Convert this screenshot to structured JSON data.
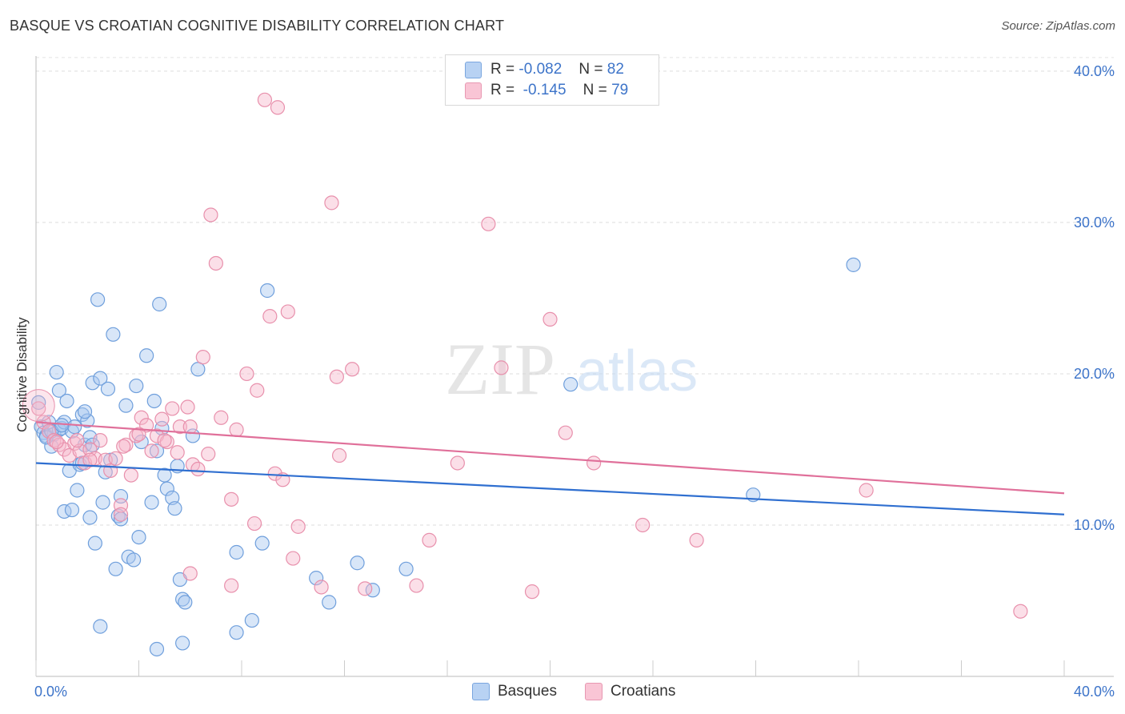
{
  "header": {
    "title": "BASQUE VS CROATIAN COGNITIVE DISABILITY CORRELATION CHART",
    "source": "Source: ZipAtlas.com"
  },
  "watermark": {
    "zip": "ZIP",
    "atlas": "atlas"
  },
  "legend": {
    "series": [
      {
        "r_label": "R =",
        "r_value": "-0.082",
        "n_label": "N =",
        "n_value": "82"
      },
      {
        "r_label": "R =",
        "r_value": "-0.145",
        "n_label": "N =",
        "n_value": "79"
      }
    ],
    "bottom": [
      "Basques",
      "Croatians"
    ]
  },
  "colors": {
    "basque_fill": "#a9c8f0",
    "basque_stroke": "#6f9fdc",
    "basque_line": "#2f6fd0",
    "croatian_fill": "#f7b8cc",
    "croatian_stroke": "#e890ac",
    "croatian_line": "#e0709a",
    "axis_text": "#3d74c9"
  },
  "chart_data": {
    "type": "scatter",
    "title": "BASQUE VS CROATIAN COGNITIVE DISABILITY CORRELATION CHART",
    "xlabel": "",
    "ylabel": "Cognitive Disability",
    "xlim": [
      0,
      40
    ],
    "ylim": [
      0,
      41
    ],
    "x_tick_labels": [
      "0.0%",
      "40.0%"
    ],
    "y_ticks": [
      10,
      20,
      30,
      40
    ],
    "y_tick_labels": [
      "10.0%",
      "20.0%",
      "30.0%",
      "40.0%"
    ],
    "grid": true,
    "series": [
      {
        "name": "Basques",
        "r": -0.082,
        "n": 82,
        "trend": {
          "x": [
            0,
            40
          ],
          "y": [
            14.1,
            10.7
          ]
        },
        "points": [
          [
            0.1,
            18.1
          ],
          [
            0.2,
            16.5
          ],
          [
            0.3,
            16.1
          ],
          [
            0.4,
            15.9
          ],
          [
            0.5,
            16.8
          ],
          [
            0.6,
            15.2
          ],
          [
            0.7,
            16.0
          ],
          [
            0.8,
            20.1
          ],
          [
            0.9,
            18.9
          ],
          [
            0.9,
            16.3
          ],
          [
            1.0,
            16.4
          ],
          [
            1.1,
            16.8
          ],
          [
            1.2,
            18.2
          ],
          [
            1.3,
            13.6
          ],
          [
            1.4,
            16.2
          ],
          [
            1.5,
            16.5
          ],
          [
            1.6,
            12.3
          ],
          [
            1.7,
            14.0
          ],
          [
            1.8,
            17.3
          ],
          [
            1.9,
            15.3
          ],
          [
            2.0,
            16.9
          ],
          [
            2.1,
            15.8
          ],
          [
            2.2,
            19.4
          ],
          [
            2.3,
            8.8
          ],
          [
            2.4,
            24.9
          ],
          [
            2.5,
            19.7
          ],
          [
            2.6,
            11.5
          ],
          [
            2.7,
            13.5
          ],
          [
            2.8,
            19.0
          ],
          [
            2.9,
            14.3
          ],
          [
            3.0,
            22.6
          ],
          [
            3.1,
            7.1
          ],
          [
            3.2,
            10.6
          ],
          [
            3.3,
            11.9
          ],
          [
            3.5,
            17.9
          ],
          [
            3.6,
            7.9
          ],
          [
            3.8,
            7.7
          ],
          [
            3.9,
            19.2
          ],
          [
            4.0,
            9.2
          ],
          [
            4.1,
            15.5
          ],
          [
            4.3,
            21.2
          ],
          [
            4.5,
            11.5
          ],
          [
            4.6,
            18.2
          ],
          [
            4.7,
            14.9
          ],
          [
            4.8,
            24.6
          ],
          [
            4.9,
            16.4
          ],
          [
            5.0,
            13.3
          ],
          [
            5.1,
            12.4
          ],
          [
            5.3,
            11.8
          ],
          [
            5.4,
            11.1
          ],
          [
            5.5,
            13.9
          ],
          [
            5.6,
            6.4
          ],
          [
            5.7,
            5.1
          ],
          [
            5.8,
            4.9
          ],
          [
            6.1,
            15.9
          ],
          [
            6.3,
            20.3
          ],
          [
            7.8,
            8.2
          ],
          [
            8.8,
            8.8
          ],
          [
            9.0,
            25.5
          ],
          [
            10.9,
            6.5
          ],
          [
            11.4,
            4.9
          ],
          [
            12.5,
            7.5
          ],
          [
            13.1,
            5.7
          ],
          [
            14.4,
            7.1
          ],
          [
            20.8,
            19.3
          ],
          [
            27.9,
            12.0
          ],
          [
            31.8,
            27.2
          ],
          [
            0.4,
            15.8
          ],
          [
            1.1,
            10.9
          ],
          [
            1.4,
            11.0
          ],
          [
            1.8,
            14.1
          ],
          [
            2.1,
            10.5
          ],
          [
            2.5,
            3.3
          ],
          [
            3.3,
            10.4
          ],
          [
            4.7,
            1.8
          ],
          [
            5.7,
            2.2
          ],
          [
            7.8,
            2.9
          ],
          [
            8.4,
            3.7
          ],
          [
            0.6,
            16.2
          ],
          [
            1.0,
            16.6
          ],
          [
            1.9,
            17.5
          ],
          [
            2.2,
            15.3
          ]
        ]
      },
      {
        "name": "Croatians",
        "r": -0.145,
        "n": 79,
        "trend": {
          "x": [
            0,
            40
          ],
          "y": [
            16.8,
            12.1
          ]
        },
        "points": [
          [
            0.1,
            17.7
          ],
          [
            0.3,
            16.8
          ],
          [
            0.5,
            16.2
          ],
          [
            0.7,
            15.6
          ],
          [
            0.9,
            15.3
          ],
          [
            1.1,
            15.0
          ],
          [
            1.3,
            14.6
          ],
          [
            1.5,
            15.4
          ],
          [
            1.7,
            14.9
          ],
          [
            1.9,
            14.1
          ],
          [
            2.1,
            15.0
          ],
          [
            2.3,
            14.4
          ],
          [
            2.5,
            15.6
          ],
          [
            2.7,
            14.3
          ],
          [
            2.9,
            13.6
          ],
          [
            3.1,
            14.4
          ],
          [
            3.3,
            11.3
          ],
          [
            3.5,
            15.3
          ],
          [
            3.7,
            13.3
          ],
          [
            3.9,
            15.9
          ],
          [
            4.1,
            17.1
          ],
          [
            4.3,
            16.6
          ],
          [
            4.5,
            14.9
          ],
          [
            4.7,
            15.9
          ],
          [
            4.9,
            17.0
          ],
          [
            5.1,
            15.5
          ],
          [
            5.3,
            17.7
          ],
          [
            5.5,
            14.8
          ],
          [
            5.6,
            16.5
          ],
          [
            5.9,
            17.8
          ],
          [
            6.1,
            14.0
          ],
          [
            6.3,
            13.7
          ],
          [
            6.5,
            21.1
          ],
          [
            6.7,
            14.7
          ],
          [
            6.8,
            30.5
          ],
          [
            7.0,
            27.3
          ],
          [
            7.2,
            17.1
          ],
          [
            7.6,
            11.7
          ],
          [
            7.8,
            16.3
          ],
          [
            8.2,
            20.0
          ],
          [
            8.5,
            10.1
          ],
          [
            8.6,
            18.9
          ],
          [
            8.9,
            38.1
          ],
          [
            9.1,
            23.8
          ],
          [
            9.3,
            13.4
          ],
          [
            9.4,
            37.6
          ],
          [
            9.6,
            13.0
          ],
          [
            9.8,
            24.1
          ],
          [
            10.0,
            7.8
          ],
          [
            10.2,
            9.9
          ],
          [
            11.1,
            5.9
          ],
          [
            11.5,
            31.3
          ],
          [
            11.7,
            19.8
          ],
          [
            11.8,
            14.6
          ],
          [
            12.3,
            20.3
          ],
          [
            12.8,
            5.8
          ],
          [
            14.8,
            6.0
          ],
          [
            15.3,
            9.0
          ],
          [
            16.4,
            14.1
          ],
          [
            17.6,
            29.9
          ],
          [
            18.1,
            20.4
          ],
          [
            19.3,
            5.6
          ],
          [
            20.0,
            23.6
          ],
          [
            20.6,
            16.1
          ],
          [
            21.7,
            14.1
          ],
          [
            23.6,
            10.0
          ],
          [
            25.7,
            9.0
          ],
          [
            32.3,
            12.3
          ],
          [
            38.3,
            4.3
          ],
          [
            6.0,
            6.8
          ],
          [
            7.6,
            6.0
          ],
          [
            3.3,
            10.7
          ],
          [
            2.1,
            14.3
          ],
          [
            1.6,
            15.6
          ],
          [
            0.8,
            15.5
          ],
          [
            4.0,
            16.0
          ],
          [
            5.0,
            15.6
          ],
          [
            6.0,
            16.5
          ],
          [
            3.4,
            15.2
          ]
        ]
      }
    ]
  }
}
